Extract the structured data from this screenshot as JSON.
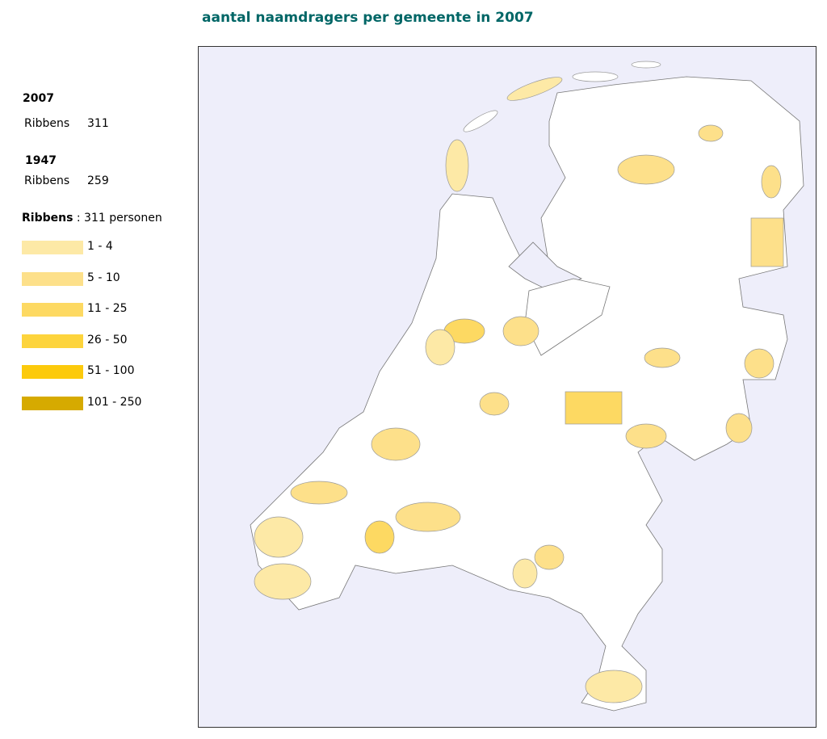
{
  "header": {
    "title": "aantal naamdragers per gemeente in 2007"
  },
  "summary": [
    {
      "year": "2007",
      "name": "Ribbens",
      "count": "311"
    },
    {
      "year": "1947",
      "name": "Ribbens",
      "count": "259"
    }
  ],
  "legend": {
    "name": "Ribbens",
    "total": ": 311 personen",
    "items": [
      {
        "label": "1 - 4",
        "color": "#fde9a6"
      },
      {
        "label": "5 - 10",
        "color": "#fde08a"
      },
      {
        "label": "11 - 25",
        "color": "#fdd962"
      },
      {
        "label": "26 - 50",
        "color": "#fdd43c"
      },
      {
        "label": "51 - 100",
        "color": "#fcca0c"
      },
      {
        "label": "101 - 250",
        "color": "#d6aa00"
      }
    ]
  }
}
